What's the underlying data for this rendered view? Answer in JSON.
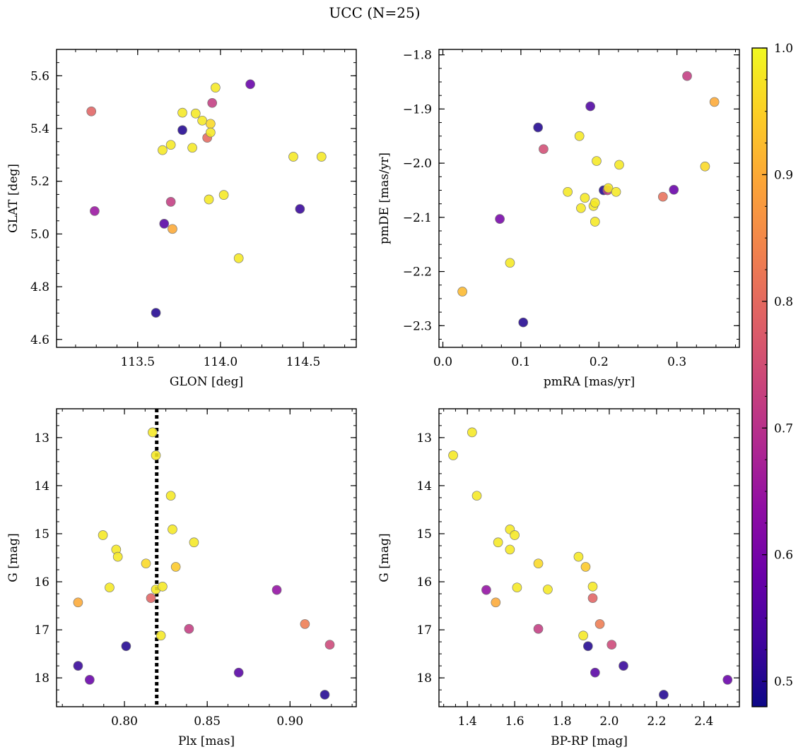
{
  "figure": {
    "title": "UCC (N=25)"
  },
  "colorbar": {
    "range": [
      0.48,
      1.0
    ],
    "ticks": [
      0.5,
      0.6,
      0.7,
      0.8,
      0.9,
      1.0
    ],
    "tick_labels": [
      "0.5",
      "0.6",
      "0.7",
      "0.8",
      "0.9",
      "1.0"
    ],
    "colormap": "plasma"
  },
  "chart_data": [
    {
      "type": "scatter",
      "id": "glon-glat",
      "title": "",
      "xlabel": "GLON [deg]",
      "ylabel": "GLAT [deg]",
      "xlim": [
        113.01,
        114.82
      ],
      "ylim": [
        4.57,
        5.7
      ],
      "yinvert": false,
      "xticks": [
        113.5,
        114.0,
        114.5
      ],
      "xtick_labels": [
        "113.5",
        "114.0",
        "114.5"
      ],
      "yticks": [
        4.6,
        4.8,
        5.0,
        5.2,
        5.4,
        5.6
      ],
      "ytick_labels": [
        "4.6",
        "4.8",
        "5.0",
        "5.2",
        "5.4",
        "5.6"
      ],
      "points": [
        {
          "x": 113.22,
          "y": 5.465,
          "c": 0.79
        },
        {
          "x": 113.24,
          "y": 5.087,
          "c": 0.65
        },
        {
          "x": 113.61,
          "y": 4.701,
          "c": 0.5
        },
        {
          "x": 113.65,
          "y": 5.318,
          "c": 0.98
        },
        {
          "x": 113.66,
          "y": 5.039,
          "c": 0.56
        },
        {
          "x": 113.7,
          "y": 5.122,
          "c": 0.72
        },
        {
          "x": 113.7,
          "y": 5.338,
          "c": 0.98
        },
        {
          "x": 113.71,
          "y": 5.019,
          "c": 0.9
        },
        {
          "x": 113.77,
          "y": 5.394,
          "c": 0.5
        },
        {
          "x": 113.77,
          "y": 5.46,
          "c": 0.98
        },
        {
          "x": 113.83,
          "y": 5.327,
          "c": 0.98
        },
        {
          "x": 113.85,
          "y": 5.457,
          "c": 0.98
        },
        {
          "x": 113.89,
          "y": 5.43,
          "c": 0.98
        },
        {
          "x": 113.92,
          "y": 5.365,
          "c": 0.8
        },
        {
          "x": 113.93,
          "y": 5.131,
          "c": 0.98
        },
        {
          "x": 113.94,
          "y": 5.418,
          "c": 0.96
        },
        {
          "x": 113.94,
          "y": 5.385,
          "c": 0.98
        },
        {
          "x": 113.95,
          "y": 5.497,
          "c": 0.72
        },
        {
          "x": 113.97,
          "y": 5.555,
          "c": 0.98
        },
        {
          "x": 114.02,
          "y": 5.148,
          "c": 0.98
        },
        {
          "x": 114.11,
          "y": 4.908,
          "c": 0.98
        },
        {
          "x": 114.18,
          "y": 5.568,
          "c": 0.58
        },
        {
          "x": 114.44,
          "y": 5.293,
          "c": 0.98
        },
        {
          "x": 114.48,
          "y": 5.095,
          "c": 0.52
        },
        {
          "x": 114.61,
          "y": 5.293,
          "c": 0.98
        }
      ]
    },
    {
      "type": "scatter",
      "id": "pmra-pmde",
      "title": "",
      "xlabel": "pmRA [mas/yr]",
      "ylabel": "pmDE [mas/yr]",
      "xlim": [
        -0.005,
        0.38
      ],
      "ylim": [
        -2.34,
        -1.79
      ],
      "yinvert": false,
      "xticks": [
        0.0,
        0.1,
        0.2,
        0.3
      ],
      "xtick_labels": [
        "0.0",
        "0.1",
        "0.2",
        "0.3"
      ],
      "yticks": [
        -2.3,
        -2.2,
        -2.1,
        -2.0,
        -1.9,
        -1.8
      ],
      "ytick_labels": [
        "−2.3",
        "−2.2",
        "−2.1",
        "−2.0",
        "−1.9",
        "−1.8"
      ],
      "points": [
        {
          "x": 0.025,
          "y": -2.237,
          "c": 0.92
        },
        {
          "x": 0.073,
          "y": -2.103,
          "c": 0.6
        },
        {
          "x": 0.086,
          "y": -2.184,
          "c": 0.98
        },
        {
          "x": 0.103,
          "y": -2.294,
          "c": 0.5
        },
        {
          "x": 0.122,
          "y": -1.934,
          "c": 0.5
        },
        {
          "x": 0.129,
          "y": -1.974,
          "c": 0.75
        },
        {
          "x": 0.16,
          "y": -2.053,
          "c": 0.98
        },
        {
          "x": 0.175,
          "y": -1.95,
          "c": 0.98
        },
        {
          "x": 0.177,
          "y": -2.083,
          "c": 0.98
        },
        {
          "x": 0.182,
          "y": -2.064,
          "c": 0.98
        },
        {
          "x": 0.189,
          "y": -1.895,
          "c": 0.55
        },
        {
          "x": 0.193,
          "y": -2.079,
          "c": 0.98
        },
        {
          "x": 0.195,
          "y": -2.073,
          "c": 0.98
        },
        {
          "x": 0.195,
          "y": -2.108,
          "c": 0.98
        },
        {
          "x": 0.197,
          "y": -1.996,
          "c": 0.98
        },
        {
          "x": 0.206,
          "y": -2.05,
          "c": 0.5
        },
        {
          "x": 0.211,
          "y": -2.05,
          "c": 0.72
        },
        {
          "x": 0.212,
          "y": -2.046,
          "c": 0.98
        },
        {
          "x": 0.222,
          "y": -2.053,
          "c": 0.98
        },
        {
          "x": 0.226,
          "y": -2.003,
          "c": 0.98
        },
        {
          "x": 0.282,
          "y": -2.062,
          "c": 0.81
        },
        {
          "x": 0.296,
          "y": -2.049,
          "c": 0.58
        },
        {
          "x": 0.313,
          "y": -1.839,
          "c": 0.72
        },
        {
          "x": 0.336,
          "y": -2.006,
          "c": 0.96
        },
        {
          "x": 0.348,
          "y": -1.887,
          "c": 0.9
        }
      ]
    },
    {
      "type": "scatter",
      "id": "plx-g",
      "title": "",
      "xlabel": "Plx [mas]",
      "ylabel": "G [mag]",
      "xlim": [
        0.759,
        0.94
      ],
      "ylim": [
        12.4,
        18.6
      ],
      "yinvert": true,
      "xticks": [
        0.8,
        0.85,
        0.9
      ],
      "xtick_labels": [
        "0.80",
        "0.85",
        "0.90"
      ],
      "yticks": [
        13,
        14,
        15,
        16,
        17,
        18
      ],
      "ytick_labels": [
        "13",
        "14",
        "15",
        "16",
        "17",
        "18"
      ],
      "vline": {
        "x": 0.8195,
        "style": "dotted"
      },
      "points": [
        {
          "x": 0.772,
          "y": 17.75,
          "c": 0.52
        },
        {
          "x": 0.772,
          "y": 16.43,
          "c": 0.9
        },
        {
          "x": 0.779,
          "y": 18.04,
          "c": 0.58
        },
        {
          "x": 0.787,
          "y": 15.03,
          "c": 0.98
        },
        {
          "x": 0.791,
          "y": 16.12,
          "c": 0.98
        },
        {
          "x": 0.795,
          "y": 15.33,
          "c": 0.98
        },
        {
          "x": 0.796,
          "y": 15.48,
          "c": 0.98
        },
        {
          "x": 0.801,
          "y": 17.34,
          "c": 0.5
        },
        {
          "x": 0.813,
          "y": 15.62,
          "c": 0.96
        },
        {
          "x": 0.816,
          "y": 16.34,
          "c": 0.79
        },
        {
          "x": 0.817,
          "y": 12.89,
          "c": 0.98
        },
        {
          "x": 0.819,
          "y": 13.37,
          "c": 0.98
        },
        {
          "x": 0.819,
          "y": 16.16,
          "c": 0.98
        },
        {
          "x": 0.822,
          "y": 17.12,
          "c": 0.98
        },
        {
          "x": 0.823,
          "y": 16.1,
          "c": 0.98
        },
        {
          "x": 0.828,
          "y": 14.21,
          "c": 0.98
        },
        {
          "x": 0.829,
          "y": 14.91,
          "c": 0.98
        },
        {
          "x": 0.831,
          "y": 15.69,
          "c": 0.94
        },
        {
          "x": 0.839,
          "y": 16.98,
          "c": 0.72
        },
        {
          "x": 0.842,
          "y": 15.18,
          "c": 0.98
        },
        {
          "x": 0.869,
          "y": 17.89,
          "c": 0.56
        },
        {
          "x": 0.892,
          "y": 16.17,
          "c": 0.64
        },
        {
          "x": 0.909,
          "y": 16.88,
          "c": 0.83
        },
        {
          "x": 0.921,
          "y": 18.35,
          "c": 0.5
        },
        {
          "x": 0.924,
          "y": 17.31,
          "c": 0.74
        }
      ]
    },
    {
      "type": "scatter",
      "id": "bprp-g",
      "title": "",
      "xlabel": "BP-RP [mag]",
      "ylabel": "G [mag]",
      "xlim": [
        1.28,
        2.55
      ],
      "ylim": [
        12.4,
        18.6
      ],
      "yinvert": true,
      "xticks": [
        1.4,
        1.6,
        1.8,
        2.0,
        2.2,
        2.4
      ],
      "xtick_labels": [
        "1.4",
        "1.6",
        "1.8",
        "2.0",
        "2.2",
        "2.4"
      ],
      "yticks": [
        13,
        14,
        15,
        16,
        17,
        18
      ],
      "ytick_labels": [
        "13",
        "14",
        "15",
        "16",
        "17",
        "18"
      ],
      "points": [
        {
          "x": 1.34,
          "y": 13.37,
          "c": 0.98
        },
        {
          "x": 1.42,
          "y": 12.89,
          "c": 0.98
        },
        {
          "x": 1.44,
          "y": 14.21,
          "c": 0.98
        },
        {
          "x": 1.48,
          "y": 16.17,
          "c": 0.64
        },
        {
          "x": 1.52,
          "y": 16.43,
          "c": 0.9
        },
        {
          "x": 1.53,
          "y": 15.18,
          "c": 0.98
        },
        {
          "x": 1.58,
          "y": 14.91,
          "c": 0.98
        },
        {
          "x": 1.58,
          "y": 15.33,
          "c": 0.98
        },
        {
          "x": 1.6,
          "y": 15.03,
          "c": 0.98
        },
        {
          "x": 1.61,
          "y": 16.12,
          "c": 0.98
        },
        {
          "x": 1.7,
          "y": 15.62,
          "c": 0.96
        },
        {
          "x": 1.7,
          "y": 16.98,
          "c": 0.72
        },
        {
          "x": 1.74,
          "y": 16.16,
          "c": 0.98
        },
        {
          "x": 1.87,
          "y": 15.48,
          "c": 0.98
        },
        {
          "x": 1.89,
          "y": 17.12,
          "c": 0.98
        },
        {
          "x": 1.9,
          "y": 15.69,
          "c": 0.94
        },
        {
          "x": 1.91,
          "y": 17.34,
          "c": 0.5
        },
        {
          "x": 1.93,
          "y": 16.1,
          "c": 0.98
        },
        {
          "x": 1.93,
          "y": 16.34,
          "c": 0.79
        },
        {
          "x": 1.94,
          "y": 17.89,
          "c": 0.56
        },
        {
          "x": 1.96,
          "y": 16.88,
          "c": 0.83
        },
        {
          "x": 2.01,
          "y": 17.31,
          "c": 0.74
        },
        {
          "x": 2.06,
          "y": 17.75,
          "c": 0.52
        },
        {
          "x": 2.23,
          "y": 18.35,
          "c": 0.5
        },
        {
          "x": 2.5,
          "y": 18.04,
          "c": 0.58
        }
      ]
    }
  ]
}
